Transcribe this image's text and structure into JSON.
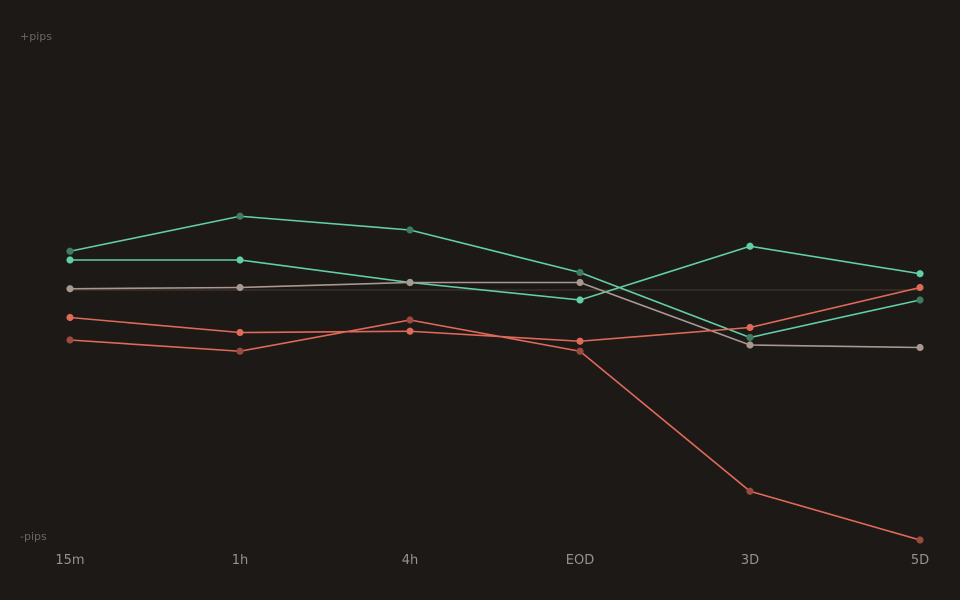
{
  "chart_data": {
    "type": "line",
    "x": [
      "15m",
      "1h",
      "4h",
      "EOD",
      "3D",
      "5D"
    ],
    "y_top_label": "+pips",
    "y_bottom_label": "-pips",
    "ylim": [
      -100,
      100
    ],
    "zero_line": true,
    "series": [
      {
        "color": "#62cfa6",
        "marker_color": "#3f7c5f",
        "values": [
          15.5,
          29.5,
          24,
          7,
          -19,
          -4
        ]
      },
      {
        "color": "#62cfa6",
        "marker_color": "#62cfa6",
        "values": [
          12,
          12,
          3,
          -4,
          17.5,
          6.5
        ]
      },
      {
        "color": "#a89890",
        "marker_color": "#a89890",
        "values": [
          0.5,
          1,
          3,
          3,
          -22,
          -23
        ]
      },
      {
        "color": "#e06a5a",
        "marker_color": "#e06a5a",
        "values": [
          -11,
          -17,
          -16.5,
          -20.5,
          -15,
          1
        ]
      },
      {
        "color": "#e06a5a",
        "marker_color": "#9a4a3e",
        "values": [
          -20,
          -24.5,
          -12,
          -24.5,
          -80.5,
          -100
        ]
      }
    ]
  }
}
